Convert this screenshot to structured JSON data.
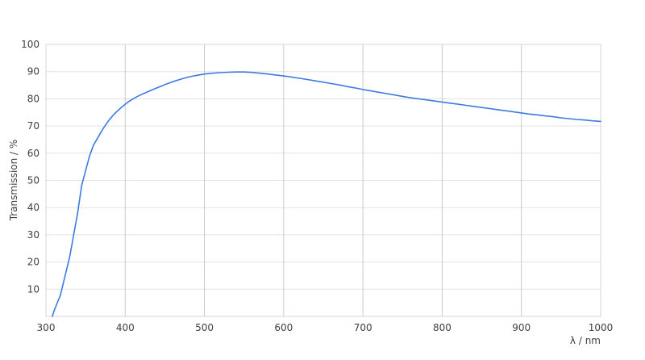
{
  "chart_data": {
    "type": "line",
    "title": "",
    "xlabel": "λ / nm",
    "ylabel": "Transmission / %",
    "xlim": [
      300,
      1000
    ],
    "ylim": [
      0,
      100
    ],
    "x_ticks": [
      300,
      400,
      500,
      600,
      700,
      800,
      900,
      1000
    ],
    "y_ticks": [
      10,
      20,
      30,
      40,
      50,
      60,
      70,
      80,
      90,
      100
    ],
    "grid": true,
    "legend_position": "none",
    "series": [
      {
        "name": "transmission-curve",
        "color": "#3d7ae1",
        "x": [
          308,
          310,
          315,
          318,
          320,
          325,
          330,
          335,
          340,
          345,
          350,
          355,
          360,
          365,
          370,
          375,
          380,
          385,
          390,
          395,
          400,
          405,
          410,
          415,
          420,
          430,
          440,
          450,
          460,
          470,
          480,
          490,
          500,
          510,
          520,
          530,
          540,
          550,
          560,
          570,
          580,
          590,
          600,
          610,
          620,
          630,
          640,
          650,
          660,
          670,
          680,
          690,
          700,
          710,
          720,
          730,
          740,
          750,
          760,
          770,
          780,
          790,
          800,
          810,
          820,
          830,
          840,
          850,
          860,
          870,
          880,
          890,
          900,
          910,
          920,
          930,
          940,
          950,
          960,
          970,
          980,
          990,
          1000
        ],
        "y": [
          0,
          1.8,
          5.5,
          7.6,
          10,
          16,
          22,
          30,
          38,
          48,
          53.5,
          59,
          63,
          65.5,
          68,
          70.3,
          72.3,
          74,
          75.5,
          76.8,
          78,
          79.1,
          80,
          80.8,
          81.5,
          82.8,
          84,
          85.2,
          86.3,
          87.2,
          88,
          88.6,
          89.1,
          89.4,
          89.6,
          89.75,
          89.85,
          89.85,
          89.7,
          89.4,
          89.1,
          88.75,
          88.4,
          88,
          87.55,
          87.1,
          86.6,
          86.1,
          85.6,
          85.1,
          84.5,
          84,
          83.4,
          82.9,
          82.4,
          81.9,
          81.4,
          80.9,
          80.4,
          80,
          79.6,
          79.2,
          78.8,
          78.4,
          78,
          77.6,
          77.2,
          76.8,
          76.4,
          76,
          75.6,
          75.2,
          74.8,
          74.4,
          74.1,
          73.7,
          73.4,
          73,
          72.7,
          72.4,
          72.2,
          71.9,
          71.7
        ]
      }
    ]
  },
  "colors": {
    "background": "#ffffff",
    "frame": "#d4d4d4",
    "grid_vertical": "#c9c9c9",
    "grid_horizontal": "#e3e3e3",
    "tick_text": "#404040",
    "line": "#3d7ae1"
  }
}
